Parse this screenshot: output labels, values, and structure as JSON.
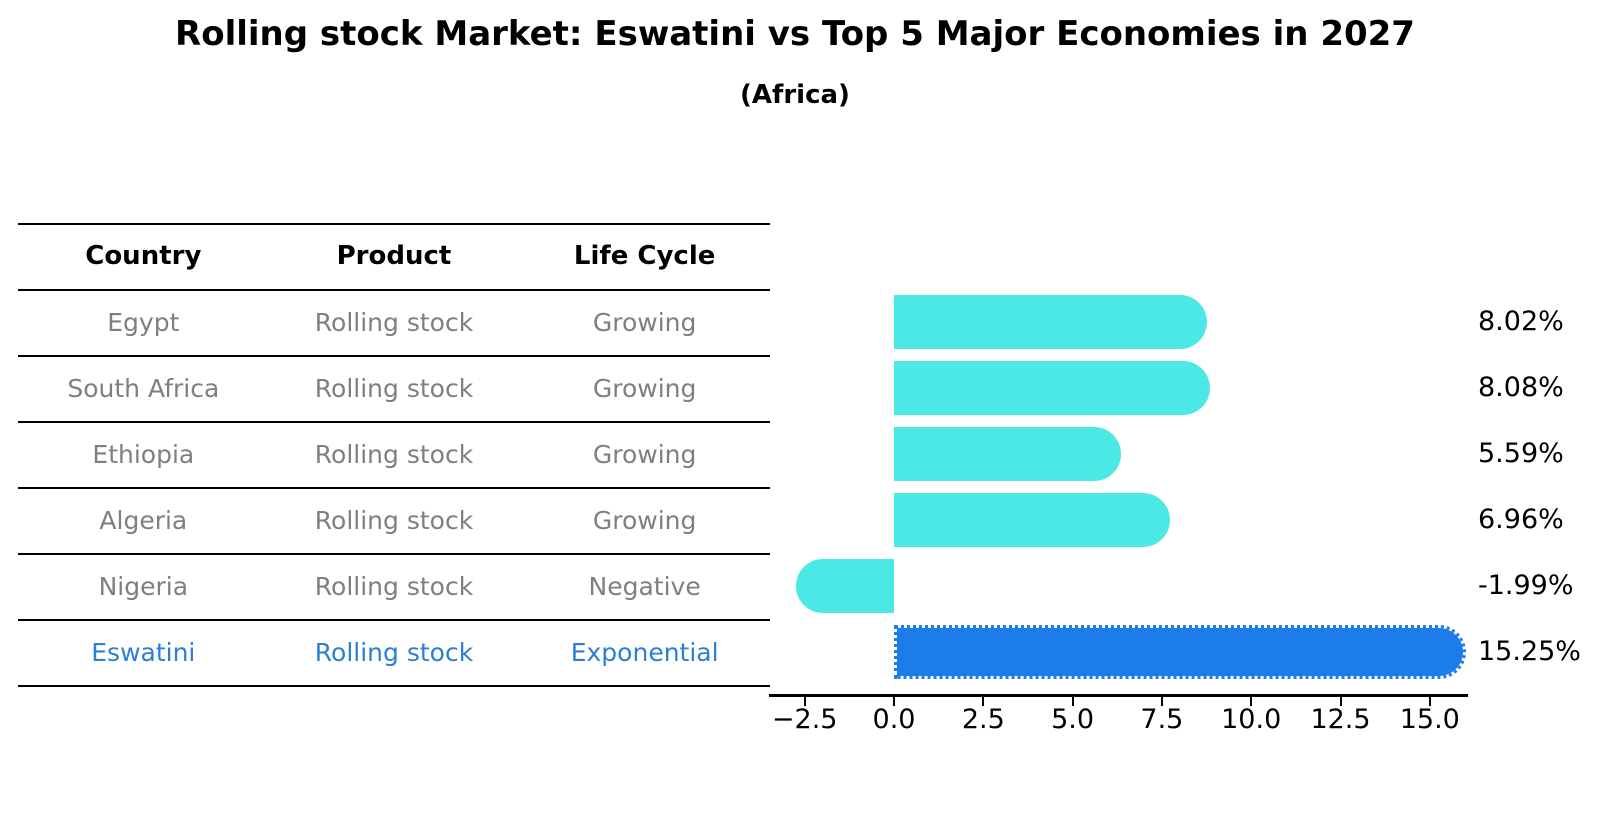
{
  "title": "Rolling stock Market: Eswatini vs Top 5 Major Economies in 2027",
  "subtitle": "(Africa)",
  "colors": {
    "bar_default": "#4be8e6",
    "bar_highlight": "#1c7de8",
    "highlight_text": "#2b7fd4",
    "body_text": "#7f7f7f",
    "heading_text": "#000000"
  },
  "table": {
    "headers": [
      "Country",
      "Product",
      "Life Cycle"
    ],
    "rows": [
      {
        "country": "Egypt",
        "product": "Rolling stock",
        "life_cycle": "Growing",
        "highlight": false
      },
      {
        "country": "South Africa",
        "product": "Rolling stock",
        "life_cycle": "Growing",
        "highlight": false
      },
      {
        "country": "Ethiopia",
        "product": "Rolling stock",
        "life_cycle": "Growing",
        "highlight": false
      },
      {
        "country": "Algeria",
        "product": "Rolling stock",
        "life_cycle": "Growing",
        "highlight": false
      },
      {
        "country": "Nigeria",
        "product": "Rolling stock",
        "life_cycle": "Negative",
        "highlight": false
      },
      {
        "country": "Eswatini",
        "product": "Rolling stock",
        "life_cycle": "Exponential",
        "highlight": true
      }
    ]
  },
  "chart_data": {
    "type": "bar",
    "orientation": "horizontal",
    "title": "Rolling stock Market: Eswatini vs Top 5 Major Economies in 2027 (Africa)",
    "categories": [
      "Egypt",
      "South Africa",
      "Ethiopia",
      "Algeria",
      "Nigeria",
      "Eswatini"
    ],
    "values": [
      8.02,
      8.08,
      5.59,
      6.96,
      -1.99,
      15.25
    ],
    "value_labels": [
      "8.02%",
      "8.08%",
      "5.59%",
      "6.96%",
      "-1.99%",
      "15.25%"
    ],
    "highlight_index": 5,
    "xlabel": "",
    "ylabel": "",
    "xlim": [
      -3.5,
      16.1
    ],
    "xticks": [
      -2.5,
      0.0,
      2.5,
      5.0,
      7.5,
      10.0,
      12.5,
      15.0
    ],
    "xtick_labels": [
      "−2.5",
      "0.0",
      "2.5",
      "5.0",
      "7.5",
      "10.0",
      "12.5",
      "15.0"
    ],
    "grid": false,
    "legend": false
  }
}
